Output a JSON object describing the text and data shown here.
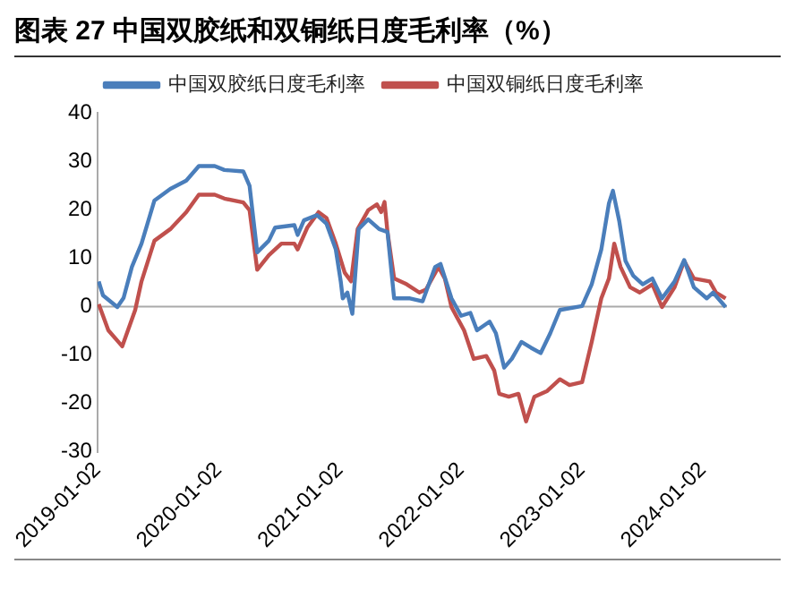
{
  "chart_data": {
    "type": "line",
    "title": "图表 27 中国双胶纸和双铜纸日度毛利率（%）",
    "xlim": [
      "2019-01-02",
      "2024-03-15"
    ],
    "xticks": [
      "2019-01-02",
      "2020-01-02",
      "2021-01-02",
      "2022-01-02",
      "2023-01-02",
      "2024-01-02"
    ],
    "ylim": [
      -30,
      40
    ],
    "yticks": [
      -30,
      -20,
      -10,
      0,
      10,
      20,
      30,
      40
    ],
    "grid": false,
    "legend": "top",
    "ref_lines": [
      {
        "axis": "y",
        "value": 0,
        "color": "#aaaaaa"
      }
    ],
    "series": [
      {
        "name": "中国双胶纸日度毛利率",
        "color": "#4a7ebb",
        "x": [
          "2019-01-06",
          "2019-01-19",
          "2019-03-03",
          "2019-03-22",
          "2019-04-16",
          "2019-05-15",
          "2019-06-23",
          "2019-08-10",
          "2019-09-27",
          "2019-11-04",
          "2019-12-22",
          "2020-01-20",
          "2020-03-17",
          "2020-04-05",
          "2020-04-28",
          "2020-06-02",
          "2020-06-21",
          "2020-08-18",
          "2020-08-28",
          "2020-09-16",
          "2020-10-25",
          "2020-11-23",
          "2020-12-21",
          "2021-01-05",
          "2021-01-11",
          "2021-01-25",
          "2021-02-09",
          "2021-02-28",
          "2021-03-29",
          "2021-05-01",
          "2021-05-26",
          "2021-06-15",
          "2021-08-02",
          "2021-09-09",
          "2021-10-17",
          "2021-11-02",
          "2021-12-05",
          "2022-01-03",
          "2022-01-31",
          "2022-02-20",
          "2022-03-30",
          "2022-04-18",
          "2022-05-13",
          "2022-06-05",
          "2022-07-04",
          "2022-08-02",
          "2022-08-31",
          "2022-09-29",
          "2022-10-28",
          "2023-01-03",
          "2023-02-01",
          "2023-03-02",
          "2023-03-25",
          "2023-04-06",
          "2023-04-25",
          "2023-05-14",
          "2023-06-06",
          "2023-07-05",
          "2023-08-03",
          "2023-09-01",
          "2023-10-09",
          "2023-11-07",
          "2023-12-06",
          "2024-01-14",
          "2024-02-02",
          "2024-03-11"
        ],
        "values": [
          5.2,
          2.3,
          -0.1,
          1.8,
          8.2,
          13,
          21.9,
          24.3,
          26,
          29,
          29,
          28.2,
          27.9,
          24.9,
          11.2,
          13.6,
          16.3,
          16.8,
          14.8,
          17.8,
          18.9,
          17.1,
          11.8,
          5.2,
          1.7,
          2.9,
          -1.5,
          16,
          18,
          16,
          15.4,
          1.7,
          1.7,
          1.1,
          8.2,
          8.8,
          1.7,
          -1.9,
          -1.3,
          -4.9,
          -3.1,
          -5.5,
          -12.6,
          -10.8,
          -7.3,
          -8.5,
          -9.6,
          -5.5,
          -0.7,
          0.1,
          4.6,
          11.8,
          21.3,
          23.9,
          17.7,
          9.4,
          6.4,
          4.6,
          5.8,
          1.7,
          5.2,
          9.6,
          4,
          1.7,
          2.9,
          -0.1
        ]
      },
      {
        "name": "中国双铜纸日度毛利率",
        "color": "#c0504d",
        "x": [
          "2019-01-06",
          "2019-02-04",
          "2019-03-18",
          "2019-04-26",
          "2019-05-15",
          "2019-06-23",
          "2019-08-10",
          "2019-09-27",
          "2019-11-04",
          "2019-12-22",
          "2020-01-20",
          "2020-03-17",
          "2020-04-05",
          "2020-04-28",
          "2020-06-02",
          "2020-07-10",
          "2020-08-18",
          "2020-08-28",
          "2020-09-26",
          "2020-10-30",
          "2020-11-23",
          "2020-12-21",
          "2021-01-17",
          "2021-02-05",
          "2021-02-25",
          "2021-03-29",
          "2021-04-24",
          "2021-05-07",
          "2021-05-17",
          "2021-05-26",
          "2021-06-15",
          "2021-07-23",
          "2021-08-30",
          "2021-09-19",
          "2021-10-27",
          "2021-11-15",
          "2021-12-05",
          "2022-01-12",
          "2022-02-10",
          "2022-03-20",
          "2022-04-13",
          "2022-04-28",
          "2022-05-27",
          "2022-06-25",
          "2022-07-18",
          "2022-08-12",
          "2022-09-20",
          "2022-10-28",
          "2022-11-26",
          "2023-01-03",
          "2023-02-01",
          "2023-03-02",
          "2023-03-25",
          "2023-04-10",
          "2023-04-29",
          "2023-05-28",
          "2023-06-26",
          "2023-08-03",
          "2023-09-01",
          "2023-10-09",
          "2023-11-07",
          "2023-12-06",
          "2024-01-23",
          "2024-02-11",
          "2024-03-11"
        ],
        "values": [
          0.5,
          -4.9,
          -8.2,
          -0.7,
          5.2,
          13.6,
          16,
          19.5,
          23.1,
          23.1,
          22.3,
          21.5,
          19.9,
          7.6,
          10.6,
          13,
          13,
          11.8,
          16.3,
          19.5,
          18.3,
          13,
          7,
          5.2,
          16,
          19.9,
          21.1,
          19.5,
          21.6,
          15.4,
          5.8,
          4.6,
          2.9,
          3.5,
          8.2,
          5.8,
          -0.1,
          -4.9,
          -10.8,
          -10.2,
          -13.2,
          -18,
          -18.6,
          -18,
          -23.7,
          -18.6,
          -17.4,
          -15,
          -16.2,
          -15.6,
          -7.3,
          1.7,
          5.8,
          13,
          8.2,
          4,
          2.9,
          4.6,
          -0.1,
          4,
          9.4,
          5.8,
          5.2,
          2.9,
          1.7
        ]
      }
    ]
  }
}
